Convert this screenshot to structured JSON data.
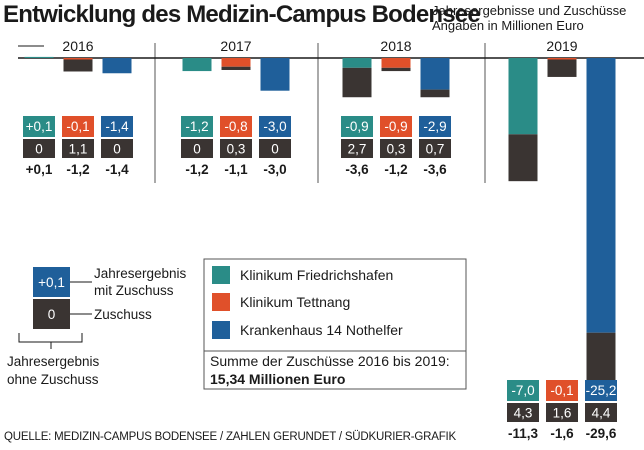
{
  "title": "Entwicklung des Medizin-Campus Bodensee",
  "subtitle_line1": "Jahresergebnisse und Zuschüsse",
  "subtitle_line2": "Angaben in Millionen Euro",
  "source": "QUELLE: MEDIZIN-CAMPUS BODENSEE / ZAHLEN GERUNDET / SÜDKURIER-GRAFIK",
  "colors": {
    "Klinikum Friedrichshafen": "#2a8c87",
    "Klinikum Tettnang": "#e0502a",
    "Krankenhaus 14 Nothelfer": "#1f5f9a",
    "zuschuss": "#3a3432"
  },
  "chart_data": {
    "type": "bar",
    "title": "Entwicklung des Medizin-Campus Bodensee",
    "subtitle": "Jahresergebnisse und Zuschüsse, Angaben in Millionen Euro",
    "categories": [
      "2016",
      "2017",
      "2018",
      "2019"
    ],
    "series": [
      {
        "name": "Klinikum Friedrichshafen",
        "jahresergebnis_mit_zuschuss": [
          0.1,
          -1.2,
          -0.9,
          -7.0
        ],
        "zuschuss": [
          0,
          0,
          2.7,
          4.3
        ],
        "jahresergebnis_ohne_zuschuss": [
          0.1,
          -1.2,
          -3.6,
          -11.3
        ]
      },
      {
        "name": "Klinikum Tettnang",
        "jahresergebnis_mit_zuschuss": [
          -0.1,
          -0.8,
          -0.9,
          -0.1
        ],
        "zuschuss": [
          1.1,
          0.3,
          0.3,
          1.6
        ],
        "jahresergebnis_ohne_zuschuss": [
          -1.2,
          -1.1,
          -1.2,
          -1.6
        ]
      },
      {
        "name": "Krankenhaus 14 Nothelfer",
        "jahresergebnis_mit_zuschuss": [
          -1.4,
          -3.0,
          -2.9,
          -25.2
        ],
        "zuschuss": [
          0,
          0,
          0.7,
          4.4
        ],
        "jahresergebnis_ohne_zuschuss": [
          -1.4,
          -3.0,
          -3.6,
          -29.6
        ]
      }
    ],
    "labels": {
      "mit": [
        "+0,1",
        "-0,1",
        "-1,4",
        "-1,2",
        "-0,8",
        "-3,0",
        "-0,9",
        "-0,9",
        "-2,9",
        "-7,0",
        "-0,1",
        "-25,2"
      ],
      "zus": [
        "0",
        "1,1",
        "0",
        "0",
        "0,3",
        "0",
        "2,7",
        "0,3",
        "0,7",
        "4,3",
        "1,6",
        "4,4"
      ],
      "ohne": [
        "+0,1",
        "-1,2",
        "-1,4",
        "-1,2",
        "-1,1",
        "-3,0",
        "-3,6",
        "-1,2",
        "-3,6",
        "-11,3",
        "-1,6",
        "-29,6"
      ]
    },
    "legend": {
      "entries": [
        "Klinikum Friedrichshafen",
        "Klinikum Tettnang",
        "Krankenhaus 14 Nothelfer"
      ],
      "summe_label": "Summe der Zuschüsse 2016 bis 2019:",
      "summe_value": "15,34 Millionen Euro",
      "key": {
        "sample_mit": "+0,1",
        "sample_zus": "0",
        "mit_label_line1": "Jahresergebnis",
        "mit_label_line2": "mit Zuschuss",
        "zus_label": "Zuschuss",
        "ohne_label_line1": "Jahresergebnis",
        "ohne_label_line2": "ohne Zuschuss"
      }
    }
  }
}
